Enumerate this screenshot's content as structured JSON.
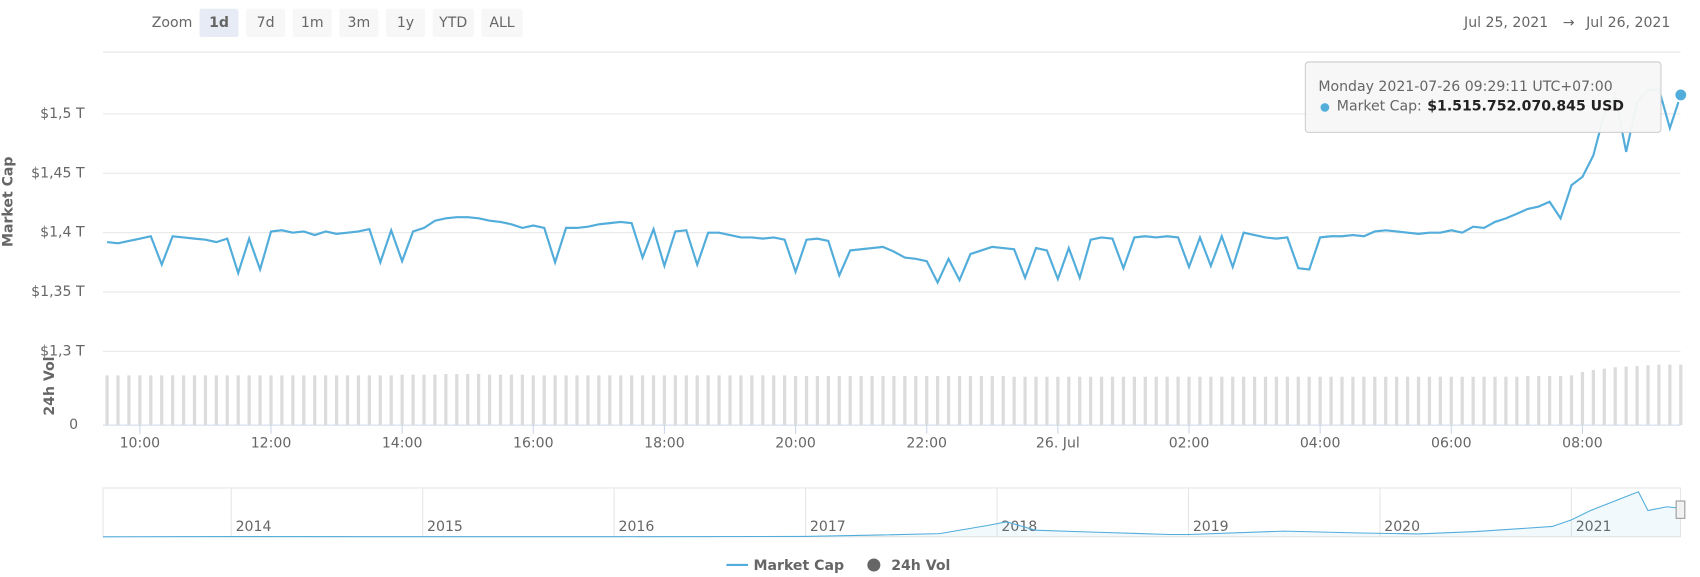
{
  "chart_data": {
    "type": "line",
    "zoom_label": "Zoom",
    "zoom_buttons": [
      "1d",
      "7d",
      "1m",
      "3m",
      "1y",
      "YTD",
      "ALL"
    ],
    "active_zoom": "1d",
    "date_from": "Jul 25, 2021",
    "date_arrow": "→",
    "date_to": "Jul 26, 2021",
    "y_label": "Market Cap",
    "y2_label": "24h Vol",
    "categories": [
      null,
      null,
      null,
      "10:00",
      null,
      null,
      null,
      null,
      null,
      null,
      null,
      null,
      null,
      null,
      null,
      "12:00",
      null,
      null,
      null,
      null,
      null,
      null,
      null,
      null,
      null,
      null,
      null,
      "14:00",
      null,
      null,
      null,
      null,
      null,
      null,
      null,
      null,
      null,
      null,
      null,
      "16:00",
      null,
      null,
      null,
      null,
      null,
      null,
      null,
      null,
      null,
      null,
      null,
      "18:00",
      null,
      null,
      null,
      null,
      null,
      null,
      null,
      null,
      null,
      null,
      null,
      "20:00",
      null,
      null,
      null,
      null,
      null,
      null,
      null,
      null,
      null,
      null,
      null,
      "22:00",
      null,
      null,
      null,
      null,
      null,
      null,
      null,
      null,
      null,
      null,
      null,
      "26. Jul",
      null,
      null,
      null,
      null,
      null,
      null,
      null,
      null,
      null,
      null,
      null,
      "02:00",
      null,
      null,
      null,
      null,
      null,
      null,
      null,
      null,
      null,
      null,
      null,
      "04:00",
      null,
      null,
      null,
      null,
      null,
      null,
      null,
      null,
      null,
      null,
      null,
      "06:00",
      null,
      null,
      null,
      null,
      null,
      null,
      null,
      null,
      null,
      null,
      null,
      "08:00",
      null,
      null,
      null,
      null,
      null,
      null,
      null,
      null,
      null
    ],
    "series": [
      {
        "name": "Market Cap",
        "color": "#52addb",
        "values": [
          1.392,
          1.391,
          1.393,
          1.395,
          1.397,
          1.373,
          1.397,
          1.396,
          1.395,
          1.394,
          1.392,
          1.395,
          1.366,
          1.395,
          1.369,
          1.401,
          1.402,
          1.4,
          1.401,
          1.398,
          1.401,
          1.399,
          1.4,
          1.401,
          1.403,
          1.375,
          1.402,
          1.376,
          1.401,
          1.404,
          1.41,
          1.412,
          1.413,
          1.413,
          1.412,
          1.41,
          1.409,
          1.407,
          1.404,
          1.406,
          1.404,
          1.375,
          1.404,
          1.404,
          1.405,
          1.407,
          1.408,
          1.409,
          1.408,
          1.379,
          1.403,
          1.372,
          1.401,
          1.402,
          1.373,
          1.4,
          1.4,
          1.398,
          1.396,
          1.396,
          1.395,
          1.396,
          1.394,
          1.367,
          1.394,
          1.395,
          1.393,
          1.364,
          1.385,
          1.386,
          1.387,
          1.388,
          1.384,
          1.379,
          1.378,
          1.376,
          1.358,
          1.378,
          1.36,
          1.382,
          1.385,
          1.388,
          1.387,
          1.386,
          1.362,
          1.387,
          1.385,
          1.361,
          1.387,
          1.362,
          1.394,
          1.396,
          1.395,
          1.37,
          1.396,
          1.397,
          1.396,
          1.397,
          1.396,
          1.371,
          1.396,
          1.372,
          1.397,
          1.371,
          1.4,
          1.398,
          1.396,
          1.395,
          1.396,
          1.37,
          1.369,
          1.396,
          1.397,
          1.397,
          1.398,
          1.397,
          1.401,
          1.402,
          1.401,
          1.4,
          1.399,
          1.4,
          1.4,
          1.402,
          1.4,
          1.405,
          1.404,
          1.409,
          1.412,
          1.416,
          1.42,
          1.422,
          1.426,
          1.412,
          1.44,
          1.447,
          1.465,
          1.5,
          1.515,
          1.468,
          1.51,
          1.52,
          1.521,
          1.488,
          1.516
        ]
      },
      {
        "name": "24h Vol",
        "color": "#666666",
        "bar_color": "#dcdcdc",
        "axis": "y2",
        "values": [
          0.074,
          0.074,
          0.074,
          0.074,
          0.074,
          0.074,
          0.074,
          0.074,
          0.074,
          0.074,
          0.074,
          0.074,
          0.074,
          0.074,
          0.074,
          0.074,
          0.074,
          0.074,
          0.074,
          0.074,
          0.074,
          0.074,
          0.074,
          0.074,
          0.074,
          0.074,
          0.074,
          0.075,
          0.075,
          0.075,
          0.075,
          0.076,
          0.076,
          0.076,
          0.076,
          0.075,
          0.075,
          0.075,
          0.075,
          0.074,
          0.074,
          0.074,
          0.074,
          0.074,
          0.074,
          0.074,
          0.074,
          0.074,
          0.074,
          0.074,
          0.074,
          0.074,
          0.074,
          0.074,
          0.074,
          0.074,
          0.074,
          0.074,
          0.074,
          0.074,
          0.074,
          0.074,
          0.074,
          0.073,
          0.073,
          0.073,
          0.073,
          0.073,
          0.073,
          0.073,
          0.073,
          0.073,
          0.073,
          0.073,
          0.073,
          0.073,
          0.073,
          0.073,
          0.073,
          0.073,
          0.073,
          0.073,
          0.073,
          0.072,
          0.072,
          0.072,
          0.072,
          0.072,
          0.072,
          0.072,
          0.072,
          0.072,
          0.072,
          0.072,
          0.072,
          0.072,
          0.072,
          0.072,
          0.072,
          0.072,
          0.072,
          0.072,
          0.072,
          0.072,
          0.072,
          0.072,
          0.072,
          0.072,
          0.072,
          0.072,
          0.072,
          0.072,
          0.072,
          0.072,
          0.072,
          0.072,
          0.072,
          0.072,
          0.072,
          0.072,
          0.072,
          0.072,
          0.072,
          0.072,
          0.072,
          0.072,
          0.072,
          0.072,
          0.072,
          0.072,
          0.073,
          0.073,
          0.073,
          0.073,
          0.074,
          0.079,
          0.082,
          0.084,
          0.086,
          0.087,
          0.088,
          0.089,
          0.09,
          0.09,
          0.09
        ]
      }
    ],
    "ylim": [
      1.3,
      1.552
    ],
    "yticks": [
      {
        "value": 1.3,
        "label": "$1,3 T"
      },
      {
        "value": 1.35,
        "label": "$1,35 T"
      },
      {
        "value": 1.4,
        "label": "$1,4 T"
      },
      {
        "value": 1.45,
        "label": "$1,45 T"
      },
      {
        "value": 1.5,
        "label": "$1,5 T"
      }
    ],
    "y2lim": [
      0,
      0.1
    ],
    "y2ticks": [
      0
    ],
    "grid": true,
    "tooltip": {
      "date": "Monday 2021-07-26 09:29:11 UTC+07:00",
      "label": "Market Cap:",
      "value": "$1.515.752.070.845 USD"
    },
    "navigator": {
      "x": [
        2013.33,
        2014,
        2015,
        2016,
        2017,
        2017.4,
        2017.7,
        2017.95,
        2018.05,
        2018.2,
        2018.5,
        2018.9,
        2019,
        2019.5,
        2019.9,
        2020.2,
        2020.5,
        2020.9,
        2021.0,
        2021.1,
        2021.3,
        2021.35,
        2021.4,
        2021.5,
        2021.57
      ],
      "values": [
        0.002,
        0.01,
        0.005,
        0.007,
        0.02,
        0.1,
        0.17,
        0.6,
        0.8,
        0.35,
        0.25,
        0.12,
        0.12,
        0.3,
        0.2,
        0.15,
        0.28,
        0.55,
        0.9,
        1.4,
        2.2,
        2.4,
        1.4,
        1.6,
        1.52
      ],
      "xlim": [
        2013.33,
        2021.57
      ],
      "xticks": [
        2014,
        2015,
        2016,
        2017,
        2018,
        2019,
        2020,
        2021
      ],
      "ylim": [
        0,
        2.6
      ]
    },
    "legend": "bottom"
  }
}
